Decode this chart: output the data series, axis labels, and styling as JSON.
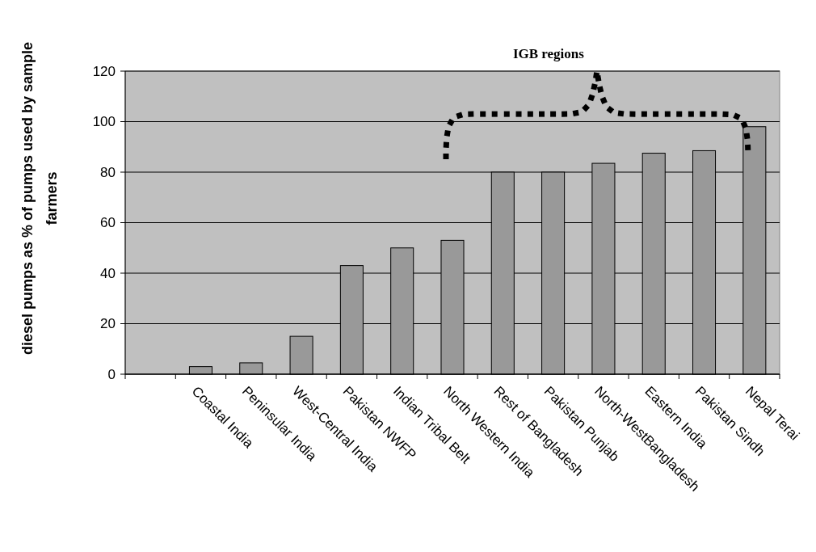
{
  "chart_data": {
    "type": "bar",
    "ylabel": "diesel pumps as % of pumps used by sample farmers",
    "categories": [
      null,
      "Coastal India",
      "Peninsular India",
      "West-Central India",
      "Pakistan NWFP",
      "Indian Tribal Belt",
      "North Western India",
      "Rest of Bangladesh",
      "Pakistan Punjab",
      "North-WestBangladesh",
      "Eastern India",
      "Pakistan Sindh",
      "Nepal Terai"
    ],
    "values": [
      null,
      3,
      4.5,
      15,
      43,
      50,
      53,
      80,
      80,
      83.5,
      87.5,
      88.5,
      98
    ],
    "color": "#999999",
    "ylim": [
      0,
      120
    ],
    "yticks": [
      0,
      20,
      40,
      60,
      80,
      100,
      120
    ],
    "grid": "y",
    "annotations": [
      "IGB regions"
    ]
  }
}
